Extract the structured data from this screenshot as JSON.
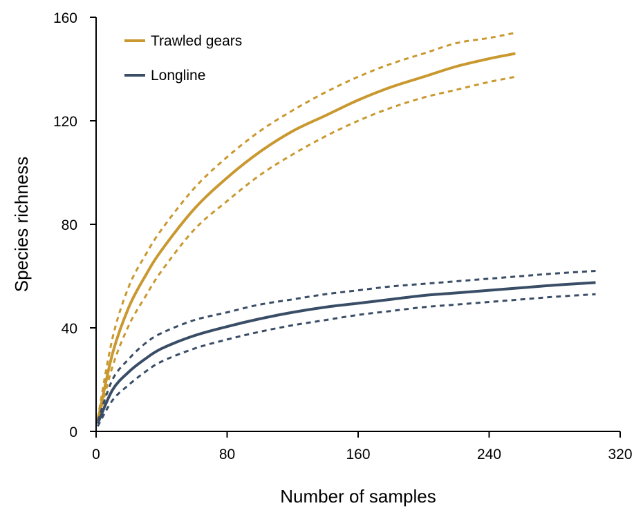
{
  "chart_data": {
    "type": "line",
    "title": "",
    "xlabel": "Number of samples",
    "ylabel": "Species richness",
    "xlim": [
      0,
      320
    ],
    "ylim": [
      0,
      160
    ],
    "x_ticks": [
      0,
      80,
      160,
      240,
      320
    ],
    "y_ticks": [
      0,
      40,
      80,
      120,
      160
    ],
    "grid": false,
    "legend_position": "top-left",
    "series": [
      {
        "name": "Trawled gears",
        "color": "#c9982f",
        "style": "solid",
        "x": [
          1,
          10,
          20,
          30,
          40,
          60,
          80,
          100,
          120,
          140,
          160,
          180,
          200,
          220,
          240,
          256
        ],
        "y": [
          4,
          30,
          48,
          60,
          70,
          86,
          98,
          108,
          116,
          122,
          128,
          133,
          137,
          141,
          144,
          146
        ]
      },
      {
        "name": "",
        "color": "#c9982f",
        "style": "dashed",
        "x": [
          1,
          10,
          20,
          30,
          40,
          60,
          80,
          100,
          120,
          140,
          160,
          180,
          200,
          220,
          240,
          256
        ],
        "y": [
          5,
          36,
          56,
          68,
          78,
          94,
          106,
          116,
          124,
          131,
          137,
          142,
          146,
          150,
          152,
          154
        ]
      },
      {
        "name": "",
        "color": "#c9982f",
        "style": "dashed",
        "x": [
          1,
          10,
          20,
          30,
          40,
          60,
          80,
          100,
          120,
          140,
          160,
          180,
          200,
          220,
          240,
          256
        ],
        "y": [
          3,
          25,
          41,
          52,
          62,
          78,
          89,
          99,
          107,
          114,
          120,
          125,
          129,
          132,
          135,
          137
        ]
      },
      {
        "name": "Longline",
        "color": "#3a4d66",
        "style": "solid",
        "x": [
          1,
          10,
          20,
          30,
          40,
          60,
          80,
          100,
          120,
          140,
          160,
          180,
          200,
          220,
          240,
          260,
          280,
          305
        ],
        "y": [
          3,
          16,
          23,
          28,
          32,
          37,
          40.5,
          43.5,
          46,
          48,
          49.5,
          51,
          52.5,
          53.5,
          54.5,
          55.5,
          56.5,
          57.5
        ]
      },
      {
        "name": "",
        "color": "#3a4d66",
        "style": "dashed",
        "x": [
          1,
          10,
          20,
          30,
          40,
          60,
          80,
          100,
          120,
          140,
          160,
          180,
          200,
          220,
          240,
          260,
          280,
          305
        ],
        "y": [
          4,
          20,
          28,
          34,
          38,
          43,
          46,
          49,
          51,
          53,
          54.5,
          56,
          57,
          58,
          59,
          60,
          61,
          62
        ]
      },
      {
        "name": "",
        "color": "#3a4d66",
        "style": "dashed",
        "x": [
          1,
          10,
          20,
          30,
          40,
          60,
          80,
          100,
          120,
          140,
          160,
          180,
          200,
          220,
          240,
          260,
          280,
          305
        ],
        "y": [
          2,
          12,
          18,
          23,
          27,
          32,
          35.5,
          38.5,
          41,
          43,
          45,
          46.5,
          48,
          49,
          50,
          51,
          52,
          53
        ]
      }
    ]
  }
}
